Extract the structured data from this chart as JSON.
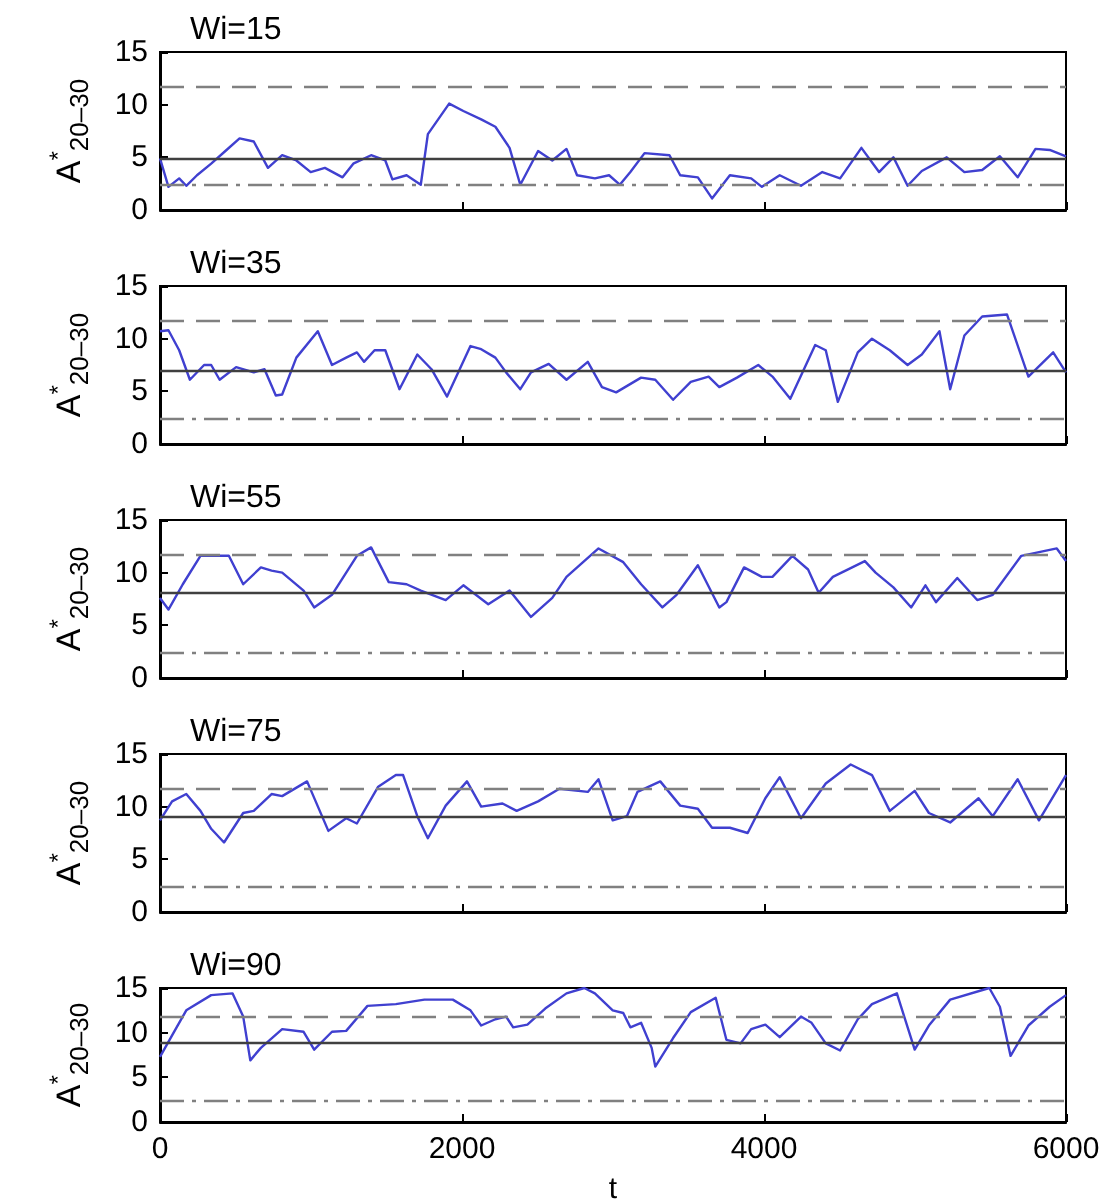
{
  "chart_data": [
    {
      "type": "line",
      "title": "Wi=15",
      "ylabel": "A$^{*}$$_{20–30}$",
      "color": "#4040d0",
      "marker": "none",
      "xlim": [
        0,
        6000
      ],
      "xticks": [
        0,
        2000,
        4000,
        6000
      ],
      "ylim": [
        0,
        15
      ],
      "yticks": [
        0,
        5,
        10,
        15
      ],
      "tick_labels": "y",
      "x": [
        0,
        56,
        127,
        174,
        245,
        339,
        433,
        527,
        621,
        715,
        809,
        903,
        998,
        1092,
        1209,
        1280,
        1398,
        1492,
        1539,
        1633,
        1727,
        1774,
        1915,
        2009,
        2127,
        2221,
        2315,
        2386,
        2504,
        2598,
        2692,
        2762,
        2880,
        2974,
        3045,
        3115,
        3209,
        3374,
        3445,
        3562,
        3656,
        3774,
        3915,
        3986,
        4104,
        4245,
        4386,
        4504,
        4645,
        4762,
        4857,
        4951,
        5045,
        5210,
        5327,
        5445,
        5562,
        5680,
        5798,
        5892,
        6000
      ],
      "values": [
        4.9,
        2.2,
        3.0,
        2.3,
        3.3,
        4.4,
        5.6,
        6.8,
        6.5,
        4.0,
        5.2,
        4.7,
        3.6,
        4.0,
        3.1,
        4.4,
        5.2,
        4.7,
        2.9,
        3.3,
        2.4,
        7.2,
        10.1,
        9.4,
        8.6,
        7.9,
        5.9,
        2.4,
        5.6,
        4.7,
        5.8,
        3.3,
        3.0,
        3.3,
        2.4,
        3.6,
        5.4,
        5.2,
        3.3,
        3.1,
        1.1,
        3.3,
        3.0,
        2.2,
        3.3,
        2.3,
        3.6,
        3.0,
        5.9,
        3.6,
        5.0,
        2.3,
        3.7,
        5.0,
        3.6,
        3.8,
        5.1,
        3.1,
        5.8,
        5.7,
        5.1
      ],
      "ref_lines": [
        {
          "axis": "y",
          "value": 11.7,
          "color": "#808080",
          "line_style": "dashed"
        },
        {
          "axis": "y",
          "value": 4.9,
          "color": "#404040",
          "line_style": "solid"
        },
        {
          "axis": "y",
          "value": 2.5,
          "color": "#808080",
          "line_style": "dashdot"
        }
      ]
    },
    {
      "type": "line",
      "title": "Wi=35",
      "ylabel": "A$^{*}$$_{20–30}$",
      "color": "#4040d0",
      "marker": "none",
      "xlim": [
        0,
        6000
      ],
      "xticks": [
        0,
        2000,
        4000,
        6000
      ],
      "ylim": [
        0,
        15
      ],
      "yticks": [
        0,
        5,
        10,
        15
      ],
      "tick_labels": "y",
      "x": [
        0,
        56,
        127,
        198,
        292,
        339,
        395,
        504,
        621,
        692,
        767,
        809,
        903,
        1045,
        1139,
        1233,
        1304,
        1351,
        1421,
        1492,
        1586,
        1704,
        1798,
        1901,
        2056,
        2127,
        2221,
        2292,
        2386,
        2457,
        2574,
        2692,
        2833,
        2927,
        3021,
        3186,
        3280,
        3398,
        3515,
        3633,
        3704,
        3821,
        3962,
        4056,
        4174,
        4339,
        4409,
        4489,
        4621,
        4715,
        4833,
        4951,
        5045,
        5162,
        5233,
        5327,
        5445,
        5609,
        5751,
        5915,
        6000
      ],
      "values": [
        10.7,
        10.8,
        8.9,
        6.1,
        7.5,
        7.5,
        6.1,
        7.3,
        6.8,
        7.1,
        4.6,
        4.7,
        8.2,
        10.7,
        7.5,
        8.2,
        8.7,
        7.8,
        8.9,
        8.9,
        5.2,
        8.5,
        7.1,
        4.5,
        9.3,
        9.0,
        8.2,
        6.8,
        5.2,
        6.8,
        7.6,
        6.1,
        7.8,
        5.4,
        4.9,
        6.3,
        6.1,
        4.2,
        5.9,
        6.4,
        5.4,
        6.3,
        7.5,
        6.4,
        4.3,
        9.4,
        8.9,
        4.0,
        8.7,
        10.0,
        8.9,
        7.5,
        8.5,
        10.7,
        5.2,
        10.3,
        12.1,
        12.3,
        6.4,
        8.7,
        6.8
      ],
      "ref_lines": [
        {
          "axis": "y",
          "value": 11.7,
          "color": "#808080",
          "line_style": "dashed"
        },
        {
          "axis": "y",
          "value": 6.9,
          "color": "#404040",
          "line_style": "solid"
        },
        {
          "axis": "y",
          "value": 2.5,
          "color": "#808080",
          "line_style": "dashdot"
        }
      ]
    },
    {
      "type": "line",
      "title": "Wi=55",
      "ylabel": "A$^{*}$$_{20–30}$",
      "color": "#4040d0",
      "marker": "none",
      "xlim": [
        0,
        6000
      ],
      "xticks": [
        0,
        2000,
        4000,
        6000
      ],
      "ylim": [
        0,
        15
      ],
      "yticks": [
        0,
        5,
        10,
        15
      ],
      "tick_labels": "y",
      "x": [
        0,
        56,
        151,
        268,
        456,
        551,
        668,
        739,
        809,
        951,
        1021,
        1139,
        1304,
        1398,
        1515,
        1633,
        1727,
        1892,
        2009,
        2174,
        2315,
        2457,
        2598,
        2692,
        2904,
        3068,
        3186,
        3327,
        3421,
        3562,
        3704,
        3751,
        3868,
        3986,
        4056,
        4188,
        4292,
        4362,
        4456,
        4668,
        4739,
        4857,
        4975,
        5069,
        5139,
        5280,
        5412,
        5515,
        5704,
        5939,
        6000
      ],
      "values": [
        7.6,
        6.5,
        8.9,
        11.6,
        11.6,
        8.9,
        10.5,
        10.2,
        10.0,
        8.3,
        6.7,
        7.9,
        11.6,
        12.4,
        9.1,
        8.9,
        8.3,
        7.4,
        8.8,
        7.0,
        8.3,
        5.8,
        7.6,
        9.6,
        12.3,
        11.0,
        8.9,
        6.7,
        7.9,
        10.7,
        6.7,
        7.2,
        10.5,
        9.6,
        9.6,
        11.6,
        10.3,
        8.1,
        9.6,
        11.1,
        10.0,
        8.6,
        6.7,
        8.8,
        7.2,
        9.5,
        7.4,
        7.9,
        11.6,
        12.3,
        11.1
      ],
      "ref_lines": [
        {
          "axis": "y",
          "value": 11.7,
          "color": "#808080",
          "line_style": "dashed"
        },
        {
          "axis": "y",
          "value": 8.1,
          "color": "#404040",
          "line_style": "solid"
        },
        {
          "axis": "y",
          "value": 2.5,
          "color": "#808080",
          "line_style": "dashdot"
        }
      ]
    },
    {
      "type": "line",
      "title": "Wi=75",
      "ylabel": "A$^{*}$$_{20–30}$",
      "color": "#4040d0",
      "marker": "none",
      "xlim": [
        0,
        6000
      ],
      "xticks": [
        0,
        2000,
        4000,
        6000
      ],
      "ylim": [
        0,
        15
      ],
      "yticks": [
        0,
        5,
        10,
        15
      ],
      "tick_labels": "y",
      "x": [
        0,
        80,
        174,
        268,
        339,
        424,
        551,
        621,
        739,
        809,
        974,
        1115,
        1233,
        1304,
        1445,
        1562,
        1610,
        1704,
        1774,
        1892,
        2033,
        2127,
        2268,
        2362,
        2504,
        2645,
        2833,
        2904,
        2998,
        3092,
        3162,
        3313,
        3445,
        3562,
        3656,
        3774,
        3892,
        4009,
        4104,
        4245,
        4409,
        4574,
        4715,
        4833,
        4998,
        5092,
        5233,
        5421,
        5515,
        5680,
        5821,
        6000
      ],
      "values": [
        8.7,
        10.5,
        11.2,
        9.6,
        7.9,
        6.6,
        9.4,
        9.6,
        11.2,
        11.0,
        12.4,
        7.7,
        8.9,
        8.4,
        11.9,
        13.0,
        13.0,
        9.1,
        7.0,
        10.1,
        12.4,
        10.0,
        10.3,
        9.6,
        10.5,
        11.7,
        11.4,
        12.6,
        8.7,
        9.1,
        11.4,
        12.4,
        10.1,
        9.8,
        8.0,
        8.0,
        7.5,
        10.8,
        12.8,
        8.9,
        12.2,
        14.0,
        13.0,
        9.6,
        11.5,
        9.4,
        8.5,
        10.8,
        9.1,
        12.6,
        8.7,
        13.0
      ],
      "ref_lines": [
        {
          "axis": "y",
          "value": 11.7,
          "color": "#808080",
          "line_style": "dashed"
        },
        {
          "axis": "y",
          "value": 9.1,
          "color": "#404040",
          "line_style": "solid"
        },
        {
          "axis": "y",
          "value": 2.5,
          "color": "#808080",
          "line_style": "dashdot"
        }
      ]
    },
    {
      "type": "line",
      "title": "Wi=90",
      "ylabel": "A$^{*}$$_{20–30}$",
      "xlabel": "t",
      "color": "#4040d0",
      "marker": "none",
      "xlim": [
        0,
        6000
      ],
      "xticks": [
        0,
        2000,
        4000,
        6000
      ],
      "ylim": [
        0,
        15
      ],
      "yticks": [
        0,
        5,
        10,
        15
      ],
      "x": [
        0,
        80,
        174,
        339,
        480,
        551,
        598,
        668,
        809,
        951,
        1021,
        1139,
        1233,
        1374,
        1562,
        1751,
        1939,
        2056,
        2127,
        2221,
        2292,
        2339,
        2433,
        2551,
        2692,
        2810,
        2880,
        2998,
        3068,
        3115,
        3186,
        3256,
        3280,
        3398,
        3515,
        3680,
        3751,
        3845,
        3915,
        4009,
        4104,
        4245,
        4315,
        4409,
        4504,
        4621,
        4715,
        4880,
        4998,
        5092,
        5233,
        5492,
        5562,
        5633,
        5751,
        5892,
        6000
      ],
      "values": [
        7.3,
        9.7,
        12.5,
        14.2,
        14.4,
        11.8,
        6.9,
        8.3,
        10.4,
        10.1,
        8.1,
        10.1,
        10.2,
        13.0,
        13.2,
        13.7,
        13.7,
        12.5,
        10.8,
        11.5,
        11.8,
        10.6,
        10.9,
        12.7,
        14.4,
        15.0,
        14.4,
        12.5,
        12.2,
        10.6,
        11.1,
        8.3,
        6.2,
        9.4,
        12.3,
        13.9,
        9.2,
        8.8,
        10.4,
        10.9,
        9.5,
        11.8,
        11.1,
        8.8,
        8.0,
        11.5,
        13.2,
        14.4,
        8.1,
        10.8,
        13.7,
        15.0,
        12.9,
        7.4,
        10.8,
        12.9,
        14.2
      ],
      "ref_lines": [
        {
          "axis": "y",
          "value": 11.7,
          "color": "#808080",
          "line_style": "dashed"
        },
        {
          "axis": "y",
          "value": 9.0,
          "color": "#404040",
          "line_style": "solid"
        },
        {
          "axis": "y",
          "value": 2.5,
          "color": "#808080",
          "line_style": "dashdot"
        }
      ]
    }
  ]
}
